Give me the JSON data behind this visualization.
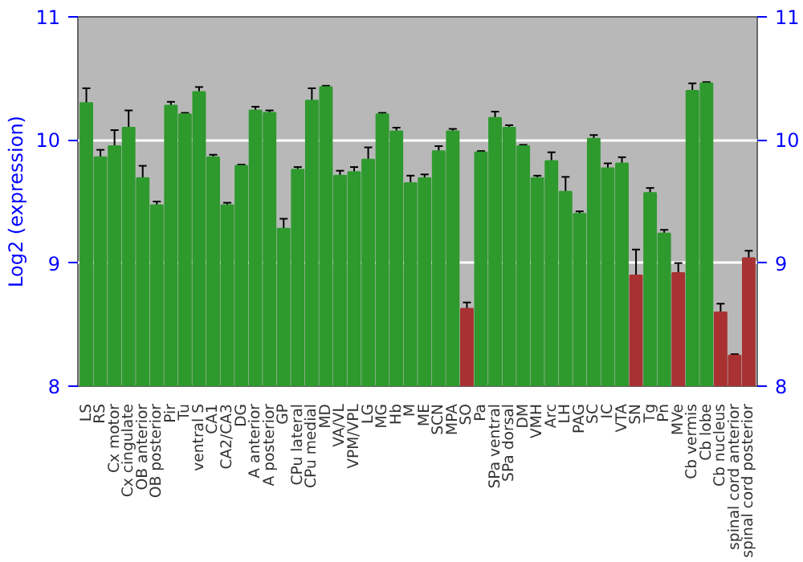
{
  "chart_data": {
    "type": "bar",
    "ylabel": "Log2 (expression)",
    "categories": [
      "LS",
      "RS",
      "Cx motor",
      "Cx cingulate",
      "OB anterior",
      "OB posterior",
      "Pir",
      "Tu",
      "ventral S",
      "CA1",
      "CA2/CA3",
      "DG",
      "A anterior",
      "A posterior",
      "GP",
      "CPu lateral",
      "CPu medial",
      "MD",
      "VA/VL",
      "VPM/VPL",
      "LG",
      "MG",
      "Hb",
      "M",
      "ME",
      "SCN",
      "MPA",
      "SO",
      "Pa",
      "SPa ventral",
      "SPa dorsal",
      "DM",
      "VMH",
      "Arc",
      "LH",
      "PAG",
      "SC",
      "IC",
      "VTA",
      "SN",
      "Tg",
      "Pn",
      "MVe",
      "Cb vermis",
      "Cb lobe",
      "Cb nucleus",
      "spinal cord anterior",
      "spinal cord posterior"
    ],
    "values": [
      10.3,
      9.86,
      9.95,
      10.1,
      9.69,
      9.47,
      10.28,
      10.21,
      10.39,
      9.86,
      9.47,
      9.79,
      10.24,
      10.22,
      9.28,
      9.76,
      10.32,
      10.43,
      9.71,
      9.74,
      9.84,
      10.21,
      10.07,
      9.65,
      9.69,
      9.91,
      10.07,
      8.63,
      9.9,
      10.18,
      10.1,
      9.95,
      9.69,
      9.83,
      9.58,
      9.4,
      10.01,
      9.77,
      9.81,
      8.9,
      9.57,
      9.24,
      8.92,
      10.4,
      10.46,
      8.6,
      8.25,
      9.04
    ],
    "errors": [
      0.12,
      0.06,
      0.13,
      0.14,
      0.1,
      0.03,
      0.03,
      0.01,
      0.04,
      0.02,
      0.02,
      0.01,
      0.03,
      0.02,
      0.08,
      0.02,
      0.1,
      0.01,
      0.04,
      0.04,
      0.1,
      0.01,
      0.03,
      0.06,
      0.03,
      0.04,
      0.02,
      0.05,
      0.01,
      0.05,
      0.02,
      0.01,
      0.02,
      0.07,
      0.12,
      0.02,
      0.03,
      0.04,
      0.05,
      0.21,
      0.04,
      0.03,
      0.08,
      0.06,
      0.01,
      0.07,
      0.01,
      0.06
    ],
    "colors": [
      "#2e9a2e",
      "#2e9a2e",
      "#2e9a2e",
      "#2e9a2e",
      "#2e9a2e",
      "#2e9a2e",
      "#2e9a2e",
      "#2e9a2e",
      "#2e9a2e",
      "#2e9a2e",
      "#2e9a2e",
      "#2e9a2e",
      "#2e9a2e",
      "#2e9a2e",
      "#2e9a2e",
      "#2e9a2e",
      "#2e9a2e",
      "#2e9a2e",
      "#2e9a2e",
      "#2e9a2e",
      "#2e9a2e",
      "#2e9a2e",
      "#2e9a2e",
      "#2e9a2e",
      "#2e9a2e",
      "#2e9a2e",
      "#2e9a2e",
      "#a83232",
      "#2e9a2e",
      "#2e9a2e",
      "#2e9a2e",
      "#2e9a2e",
      "#2e9a2e",
      "#2e9a2e",
      "#2e9a2e",
      "#2e9a2e",
      "#2e9a2e",
      "#2e9a2e",
      "#2e9a2e",
      "#a83232",
      "#2e9a2e",
      "#2e9a2e",
      "#a83232",
      "#2e9a2e",
      "#2e9a2e",
      "#a83232",
      "#a83232",
      "#a83232"
    ],
    "ylim": [
      8,
      11
    ],
    "yticks": [
      8,
      9,
      10,
      11
    ],
    "y2lim": [
      8,
      11
    ],
    "y2ticks": [
      8,
      9,
      10,
      11
    ],
    "grid": "y"
  }
}
